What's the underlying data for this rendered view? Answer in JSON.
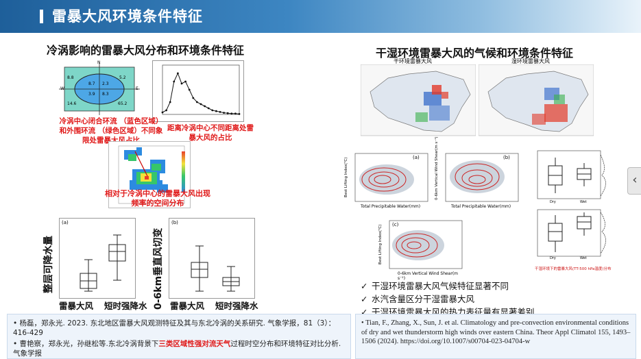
{
  "header": {
    "title": "雷暴大风环境条件特征"
  },
  "left": {
    "section_title": "冷涡影响的雷暴大风分布和环境条件特征",
    "ellipse_values": [
      "8.8",
      "5.2",
      "8.7",
      "2.3",
      "3.9",
      "8.3",
      "14.6",
      "65.2"
    ],
    "compass": {
      "n": "N",
      "s": "S",
      "w": "W",
      "e": "E"
    },
    "caption_ellipse": "冷涡中心闭合环流 （蓝色区域） 和外围环流 （绿色区域）不同象限处雷暴大风占比",
    "caption_distance": "距离冷涡中心不同距离处雷暴大风的占比",
    "caption_heatmap": "相对于冷涡中心的雷暴大风出现频率的空间分布",
    "box1": {
      "panel": "(a)",
      "ylabel": "整层可降水量",
      "cat1": "雷暴大风",
      "cat2": "短时强降水"
    },
    "box2": {
      "panel": "(b)",
      "ylabel": "0-6km垂直风切变",
      "cat1": "雷暴大风",
      "cat2": "短时强降水"
    }
  },
  "right": {
    "section_title": "干湿环境雷暴大风的气候和环境条件特征",
    "map1_label": "干环境雷暴大风",
    "map2_label": "湿环境雷暴大风",
    "scatter_a_panel": "(a)",
    "scatter_b_panel": "(b)",
    "scatter_c_panel": "(c)",
    "scatter_xlabel_ab": "Total Precipitable Water(mm)",
    "scatter_xlabel_c": "0-6km Vertical Wind Shear(m s⁻¹)",
    "scatter_ylabel_a": "Best Lifting Index(℃)",
    "scatter_ylabel_b": "0-6km Vertical Wind Shear(m s⁻¹)",
    "scatter_ylabel_c": "Best Lifting Index(℃)",
    "box_cat1": "Dry",
    "box_cat2": "Wet",
    "note_red": "干湿环境下的雷暴大风(TT-500 hPa温度)分布",
    "bullets": [
      "干湿环境雷暴大风气候特征显著不同",
      "水汽含量区分干湿雷暴大风",
      "干湿环境雷暴大风的热力表征量有显著差别"
    ]
  },
  "refs_left": {
    "ref1": "杨磊，郑永光. 2023. 东北地区雷暴大风观测特征及其与东北冷涡的关系研究. 气象学报，81（3）：416-429",
    "ref2_pre": "曹艳察，郑永光，孙继松等.东北冷涡背景下",
    "ref2_hl": "三类区域性强对流天气",
    "ref2_post": "过程时空分布和环境特征对比分析. 气象学报"
  },
  "refs_right": {
    "ref": "Tian, F., Zhang, X., Sun, J. et al. Climatology and pre-convection environmental conditions of dry and wet thunderstorm high winds over eastern China. Theor Appl Climatol 155, 1493–1506 (2024). https://doi.org/10.1007/s00704-023-04704-w"
  },
  "nav": {
    "arrow": "‹"
  },
  "chart_data": {
    "type": "line",
    "x": [
      0,
      1,
      2,
      3,
      4,
      5,
      6,
      7,
      8,
      9,
      10,
      11,
      12,
      13,
      14,
      15,
      16,
      17,
      18,
      19,
      20
    ],
    "values": [
      0.5,
      1,
      3,
      8,
      10,
      7.5,
      8,
      6,
      4,
      3,
      2.5,
      2,
      1.5,
      1,
      0.8,
      0.6,
      0.4,
      0.3,
      0.2,
      0.2,
      0.1
    ],
    "xlabel": "",
    "ylabel": ""
  }
}
